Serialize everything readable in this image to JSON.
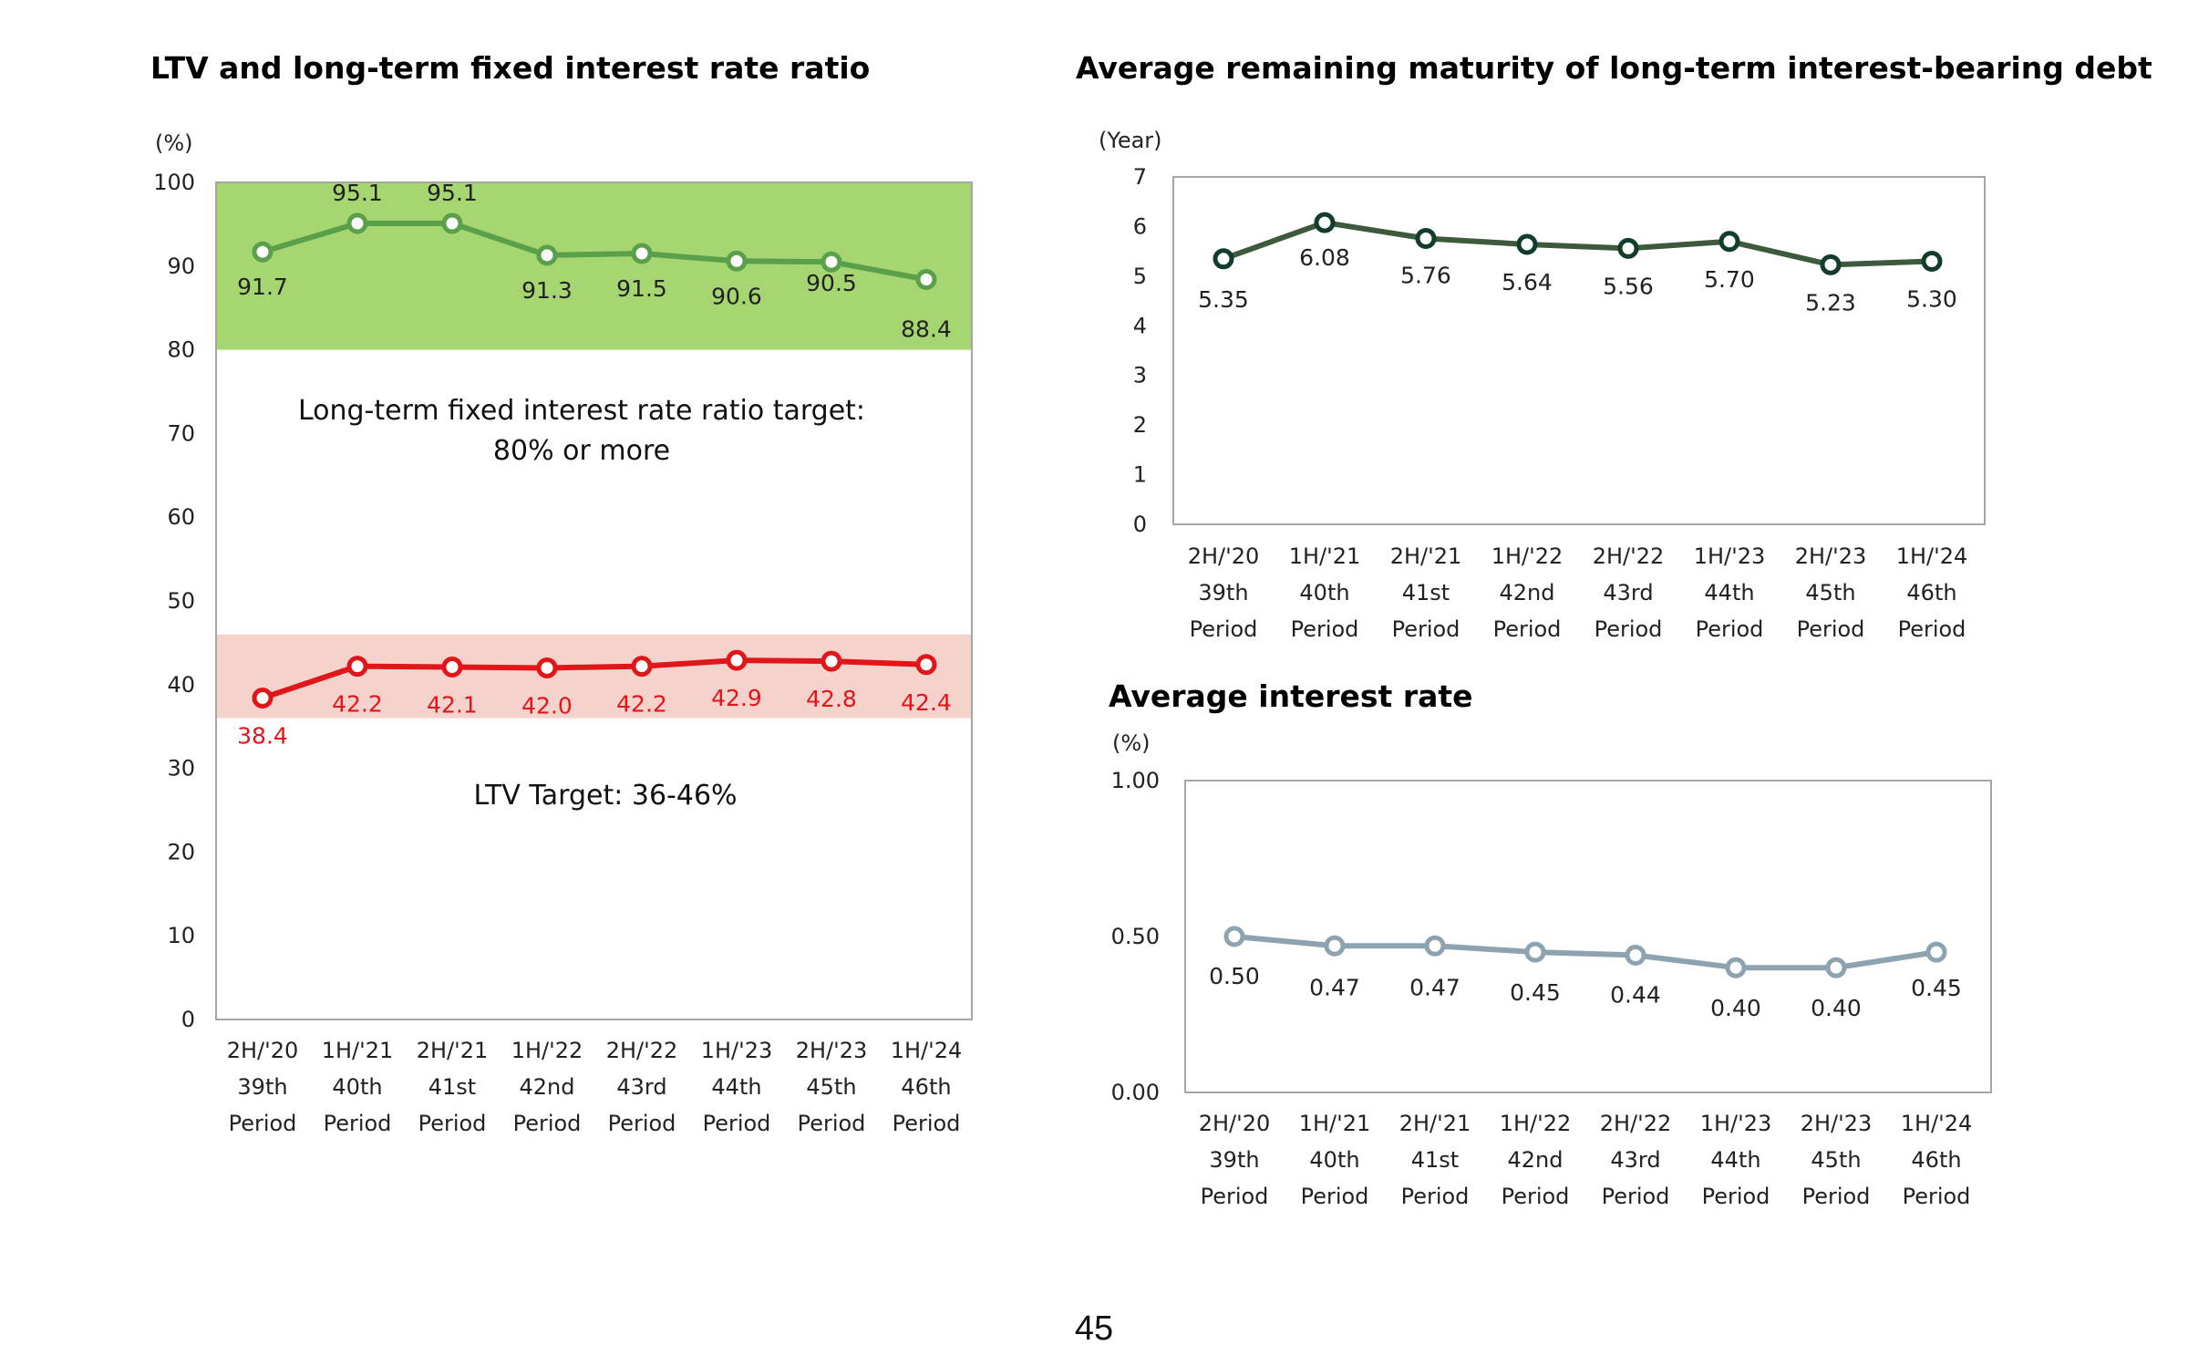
{
  "page_number": "45",
  "chart_data": [
    {
      "type": "line",
      "title": "LTV and long-term fixed interest rate ratio",
      "unit_label": "(%)",
      "ylim": [
        0,
        100
      ],
      "yticks": [
        "0",
        "10",
        "20",
        "30",
        "40",
        "50",
        "60",
        "70",
        "80",
        "90",
        "100"
      ],
      "grid": false,
      "categories": [
        [
          "2H/'20",
          "39th",
          "Period"
        ],
        [
          "1H/'21",
          "40th",
          "Period"
        ],
        [
          "2H/'21",
          "41st",
          "Period"
        ],
        [
          "1H/'22",
          "42nd",
          "Period"
        ],
        [
          "2H/'22",
          "43rd",
          "Period"
        ],
        [
          "1H/'23",
          "44th",
          "Period"
        ],
        [
          "2H/'23",
          "45th",
          "Period"
        ],
        [
          "1H/'24",
          "46th",
          "Period"
        ]
      ],
      "series": [
        {
          "values": [
            91.7,
            95.1,
            95.1,
            91.3,
            91.5,
            90.6,
            90.5,
            88.4
          ],
          "labels": [
            "91.7",
            "95.1",
            "95.1",
            "91.3",
            "91.5",
            "90.6",
            "90.5",
            "88.4"
          ],
          "color": "#5aa04a",
          "label_color": "#222222"
        },
        {
          "values": [
            38.4,
            42.2,
            42.1,
            42.0,
            42.2,
            42.9,
            42.8,
            42.4
          ],
          "labels": [
            "38.4",
            "42.2",
            "42.1",
            "42.0",
            "42.2",
            "42.9",
            "42.8",
            "42.4"
          ],
          "color": "#e0161b",
          "label_color": "#e0161b"
        }
      ],
      "bands": [
        {
          "from": 80,
          "to": 100,
          "color": "#a6d672"
        },
        {
          "from": 36,
          "to": 46,
          "color": "#f6d2cc"
        }
      ],
      "annotations": [
        "Long-term fixed interest rate ratio target:",
        "80% or more",
        "LTV Target: 36-46%"
      ]
    },
    {
      "type": "line",
      "title": "Average remaining maturity of long-term interest-bearing debt",
      "unit_label": "(Year)",
      "ylim": [
        0,
        7
      ],
      "yticks": [
        "0",
        "1",
        "2",
        "3",
        "4",
        "5",
        "6",
        "7"
      ],
      "grid": false,
      "categories": [
        [
          "2H/'20",
          "39th",
          "Period"
        ],
        [
          "1H/'21",
          "40th",
          "Period"
        ],
        [
          "2H/'21",
          "41st",
          "Period"
        ],
        [
          "1H/'22",
          "42nd",
          "Period"
        ],
        [
          "2H/'22",
          "43rd",
          "Period"
        ],
        [
          "1H/'23",
          "44th",
          "Period"
        ],
        [
          "2H/'23",
          "45th",
          "Period"
        ],
        [
          "1H/'24",
          "46th",
          "Period"
        ]
      ],
      "series": [
        {
          "values": [
            5.35,
            6.08,
            5.76,
            5.64,
            5.56,
            5.7,
            5.23,
            5.3
          ],
          "labels": [
            "5.35",
            "6.08",
            "5.76",
            "5.64",
            "5.56",
            "5.70",
            "5.23",
            "5.30"
          ],
          "color": "#3d5a3c",
          "marker_color": "#123d2a",
          "label_color": "#222222"
        }
      ]
    },
    {
      "type": "line",
      "title": "Average interest rate",
      "unit_label": "(%)",
      "ylim": [
        0,
        1
      ],
      "yticks": [
        "0.00",
        "0.50",
        "1.00"
      ],
      "grid": false,
      "categories": [
        [
          "2H/'20",
          "39th",
          "Period"
        ],
        [
          "1H/'21",
          "40th",
          "Period"
        ],
        [
          "2H/'21",
          "41st",
          "Period"
        ],
        [
          "1H/'22",
          "42nd",
          "Period"
        ],
        [
          "2H/'22",
          "43rd",
          "Period"
        ],
        [
          "1H/'23",
          "44th",
          "Period"
        ],
        [
          "2H/'23",
          "45th",
          "Period"
        ],
        [
          "1H/'24",
          "46th",
          "Period"
        ]
      ],
      "series": [
        {
          "values": [
            0.5,
            0.47,
            0.47,
            0.45,
            0.44,
            0.4,
            0.4,
            0.45
          ],
          "labels": [
            "0.50",
            "0.47",
            "0.47",
            "0.45",
            "0.44",
            "0.40",
            "0.40",
            "0.45"
          ],
          "color": "#8ea3b0",
          "label_color": "#222222"
        }
      ]
    }
  ]
}
